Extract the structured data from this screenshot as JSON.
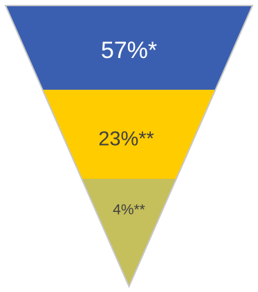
{
  "chart_data": {
    "type": "funnel",
    "title": "",
    "segments": [
      {
        "label": "57%*",
        "value": 57,
        "color": "#3b5fb0",
        "text_color": "#ffffff"
      },
      {
        "label": "23%**",
        "value": 23,
        "color": "#ffcc00",
        "text_color": "#404040"
      },
      {
        "label": "4%**",
        "value": 4,
        "color": "#c5bf5c",
        "text_color": "#404040"
      }
    ],
    "edge_color": "#c8c8c8"
  }
}
